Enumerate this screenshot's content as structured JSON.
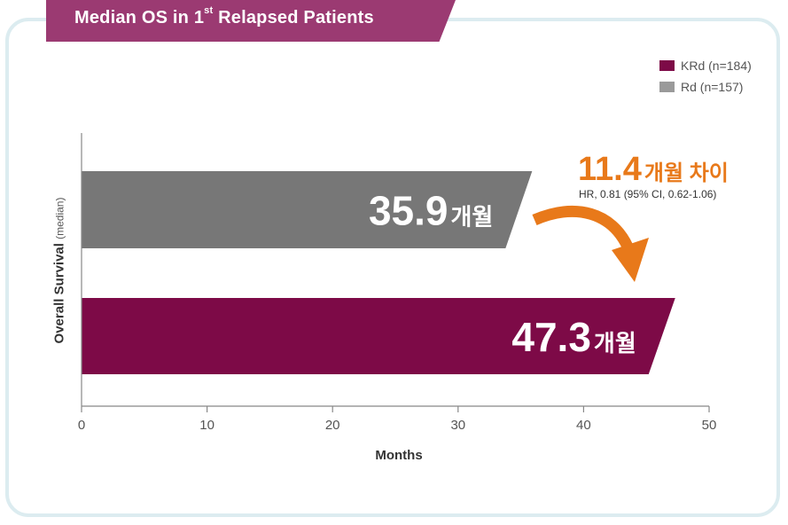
{
  "title": {
    "main": "Median OS in 1",
    "sup": "st",
    "rest": " Relapsed Patients"
  },
  "legend": [
    {
      "label": "KRd (n=184)",
      "color": "#7d0a47"
    },
    {
      "label": "Rd (n=157)",
      "color": "#9a9a9a"
    }
  ],
  "annotation": {
    "diff_value": "11.4",
    "diff_unit": "개월 차이",
    "hr_text": "HR, 0.81 (95% CI, 0.62-1.06)",
    "color": "#e8791a"
  },
  "chart_data": {
    "type": "bar",
    "orientation": "horizontal",
    "title": "Median OS in 1st Relapsed Patients",
    "xlabel": "Months",
    "ylabel_main": "Overall Survival",
    "ylabel_sub": "(median)",
    "xlim": [
      0,
      50
    ],
    "xticks": [
      0,
      10,
      20,
      30,
      40,
      50
    ],
    "unit_suffix": "개월",
    "series": [
      {
        "name": "Rd (n=157)",
        "value": 35.9,
        "label": "35.9",
        "color": "#777777"
      },
      {
        "name": "KRd (n=184)",
        "value": 47.3,
        "label": "47.3",
        "color": "#7d0a47"
      }
    ]
  }
}
